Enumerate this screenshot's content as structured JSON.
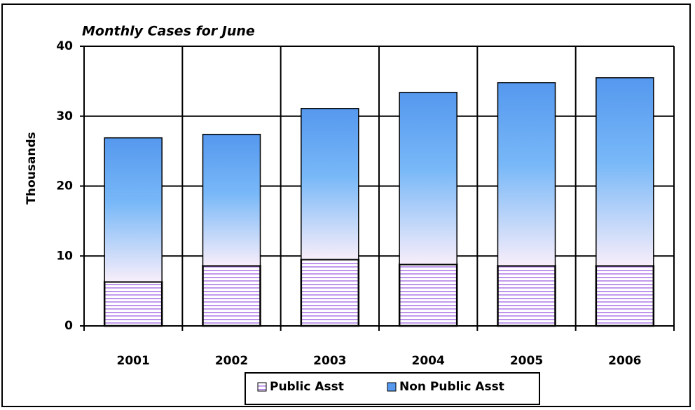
{
  "chart_data": {
    "type": "bar",
    "stacked": true,
    "title": "Monthly Cases for June",
    "y_label": "Thousands",
    "categories": [
      "2001",
      "2002",
      "2003",
      "2004",
      "2005",
      "2006"
    ],
    "series": [
      {
        "name": "Public Asst",
        "color": "#b07ee8",
        "values": [
          6.3,
          8.6,
          9.5,
          8.8,
          8.6,
          8.6
        ]
      },
      {
        "name": "Non Public Asst",
        "color": "#5598ee",
        "values": [
          20.6,
          18.8,
          21.6,
          24.6,
          26.2,
          26.9
        ]
      }
    ],
    "ylim": [
      0,
      40
    ],
    "yticks": [
      0,
      10,
      20,
      30,
      40
    ],
    "grid": true
  }
}
